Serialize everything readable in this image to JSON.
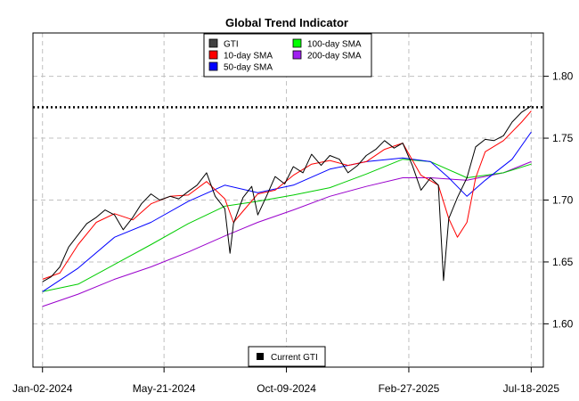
{
  "chart_data": {
    "type": "line",
    "title": "Global Trend Indicator",
    "xlabel": "",
    "ylabel": "",
    "grid": true,
    "legend_position": "top-center",
    "xlim": [
      "2023-12-22",
      "2025-08-01"
    ],
    "ylim": [
      1.565,
      1.835
    ],
    "x_ticks": [
      "2024-01-02",
      "2024-05-21",
      "2024-10-09",
      "2025-02-27",
      "2025-07-18"
    ],
    "x_tick_labels": [
      "Jan-02-2024",
      "May-21-2024",
      "Oct-09-2024",
      "Feb-27-2025",
      "Jul-18-2025"
    ],
    "y_ticks": [
      1.6,
      1.65,
      1.7,
      1.75,
      1.8
    ],
    "y_tick_labels": [
      "1.60",
      "1.65",
      "1.70",
      "1.75",
      "1.80"
    ],
    "current_level": {
      "value": 1.775,
      "label": "Current GTI",
      "color": "#000000"
    },
    "series": [
      {
        "name": "GTI",
        "color": "#000000",
        "legend_color": "#404040",
        "points": [
          [
            "2024-01-02",
            1.634
          ],
          [
            "2024-01-12",
            1.638
          ],
          [
            "2024-01-22",
            1.646
          ],
          [
            "2024-02-01",
            1.662
          ],
          [
            "2024-02-12",
            1.672
          ],
          [
            "2024-02-22",
            1.681
          ],
          [
            "2024-03-04",
            1.686
          ],
          [
            "2024-03-14",
            1.692
          ],
          [
            "2024-03-25",
            1.688
          ],
          [
            "2024-04-04",
            1.676
          ],
          [
            "2024-04-15",
            1.686
          ],
          [
            "2024-04-25",
            1.697
          ],
          [
            "2024-05-06",
            1.705
          ],
          [
            "2024-05-16",
            1.7
          ],
          [
            "2024-05-28",
            1.703
          ],
          [
            "2024-06-07",
            1.701
          ],
          [
            "2024-06-18",
            1.707
          ],
          [
            "2024-06-28",
            1.712
          ],
          [
            "2024-07-09",
            1.722
          ],
          [
            "2024-07-19",
            1.703
          ],
          [
            "2024-07-30",
            1.693
          ],
          [
            "2024-08-05",
            1.657
          ],
          [
            "2024-08-09",
            1.681
          ],
          [
            "2024-08-20",
            1.702
          ],
          [
            "2024-08-30",
            1.711
          ],
          [
            "2024-09-06",
            1.688
          ],
          [
            "2024-09-16",
            1.703
          ],
          [
            "2024-09-26",
            1.719
          ],
          [
            "2024-10-07",
            1.713
          ],
          [
            "2024-10-17",
            1.727
          ],
          [
            "2024-10-28",
            1.722
          ],
          [
            "2024-11-07",
            1.737
          ],
          [
            "2024-11-18",
            1.728
          ],
          [
            "2024-11-28",
            1.736
          ],
          [
            "2024-12-09",
            1.733
          ],
          [
            "2024-12-19",
            1.722
          ],
          [
            "2024-12-30",
            1.728
          ],
          [
            "2025-01-09",
            1.736
          ],
          [
            "2025-01-20",
            1.741
          ],
          [
            "2025-01-30",
            1.748
          ],
          [
            "2025-02-10",
            1.742
          ],
          [
            "2025-02-20",
            1.746
          ],
          [
            "2025-03-03",
            1.728
          ],
          [
            "2025-03-13",
            1.708
          ],
          [
            "2025-03-24",
            1.718
          ],
          [
            "2025-04-02",
            1.712
          ],
          [
            "2025-04-08",
            1.635
          ],
          [
            "2025-04-14",
            1.685
          ],
          [
            "2025-04-24",
            1.702
          ],
          [
            "2025-05-05",
            1.718
          ],
          [
            "2025-05-15",
            1.743
          ],
          [
            "2025-05-26",
            1.749
          ],
          [
            "2025-06-05",
            1.748
          ],
          [
            "2025-06-16",
            1.752
          ],
          [
            "2025-06-26",
            1.763
          ],
          [
            "2025-07-07",
            1.771
          ],
          [
            "2025-07-18",
            1.776
          ]
        ]
      },
      {
        "name": "10-day SMA",
        "color": "#ff0000",
        "points": [
          [
            "2024-01-02",
            1.636
          ],
          [
            "2024-01-22",
            1.641
          ],
          [
            "2024-02-12",
            1.664
          ],
          [
            "2024-03-04",
            1.682
          ],
          [
            "2024-03-25",
            1.689
          ],
          [
            "2024-04-15",
            1.684
          ],
          [
            "2024-05-06",
            1.697
          ],
          [
            "2024-05-28",
            1.703
          ],
          [
            "2024-06-18",
            1.704
          ],
          [
            "2024-07-09",
            1.715
          ],
          [
            "2024-07-30",
            1.701
          ],
          [
            "2024-08-09",
            1.682
          ],
          [
            "2024-08-20",
            1.691
          ],
          [
            "2024-09-06",
            1.705
          ],
          [
            "2024-09-26",
            1.708
          ],
          [
            "2024-10-17",
            1.72
          ],
          [
            "2024-11-07",
            1.729
          ],
          [
            "2024-11-28",
            1.732
          ],
          [
            "2024-12-19",
            1.728
          ],
          [
            "2025-01-09",
            1.731
          ],
          [
            "2025-01-30",
            1.741
          ],
          [
            "2025-02-20",
            1.746
          ],
          [
            "2025-03-13",
            1.72
          ],
          [
            "2025-04-02",
            1.712
          ],
          [
            "2025-04-14",
            1.685
          ],
          [
            "2025-04-24",
            1.67
          ],
          [
            "2025-05-05",
            1.682
          ],
          [
            "2025-05-15",
            1.718
          ],
          [
            "2025-05-26",
            1.739
          ],
          [
            "2025-06-16",
            1.748
          ],
          [
            "2025-07-07",
            1.763
          ],
          [
            "2025-07-18",
            1.772
          ]
        ]
      },
      {
        "name": "50-day SMA",
        "color": "#0000ff",
        "points": [
          [
            "2024-01-02",
            1.626
          ],
          [
            "2024-02-12",
            1.645
          ],
          [
            "2024-03-25",
            1.67
          ],
          [
            "2024-05-06",
            1.682
          ],
          [
            "2024-06-18",
            1.699
          ],
          [
            "2024-07-30",
            1.712
          ],
          [
            "2024-09-06",
            1.706
          ],
          [
            "2024-10-17",
            1.712
          ],
          [
            "2024-11-28",
            1.725
          ],
          [
            "2025-01-09",
            1.731
          ],
          [
            "2025-02-20",
            1.734
          ],
          [
            "2025-03-24",
            1.731
          ],
          [
            "2025-04-14",
            1.718
          ],
          [
            "2025-05-05",
            1.703
          ],
          [
            "2025-05-26",
            1.716
          ],
          [
            "2025-06-26",
            1.733
          ],
          [
            "2025-07-18",
            1.755
          ]
        ]
      },
      {
        "name": "100-day SMA",
        "color": "#00cc00",
        "legend_color": "#00ff00",
        "points": [
          [
            "2024-01-02",
            1.626
          ],
          [
            "2024-02-12",
            1.632
          ],
          [
            "2024-03-25",
            1.648
          ],
          [
            "2024-05-06",
            1.664
          ],
          [
            "2024-06-18",
            1.681
          ],
          [
            "2024-07-30",
            1.695
          ],
          [
            "2024-09-06",
            1.699
          ],
          [
            "2024-10-17",
            1.704
          ],
          [
            "2024-11-28",
            1.71
          ],
          [
            "2025-01-09",
            1.721
          ],
          [
            "2025-02-20",
            1.733
          ],
          [
            "2025-03-24",
            1.731
          ],
          [
            "2025-05-05",
            1.718
          ],
          [
            "2025-06-16",
            1.722
          ],
          [
            "2025-07-18",
            1.729
          ]
        ]
      },
      {
        "name": "200-day SMA",
        "color": "#9900cc",
        "legend_color": "#a020f0",
        "points": [
          [
            "2024-01-02",
            1.614
          ],
          [
            "2024-02-12",
            1.624
          ],
          [
            "2024-03-25",
            1.636
          ],
          [
            "2024-05-06",
            1.646
          ],
          [
            "2024-06-18",
            1.658
          ],
          [
            "2024-07-30",
            1.671
          ],
          [
            "2024-09-06",
            1.682
          ],
          [
            "2024-10-17",
            1.692
          ],
          [
            "2024-11-28",
            1.703
          ],
          [
            "2025-01-09",
            1.711
          ],
          [
            "2025-02-20",
            1.718
          ],
          [
            "2025-03-24",
            1.718
          ],
          [
            "2025-05-05",
            1.716
          ],
          [
            "2025-06-16",
            1.722
          ],
          [
            "2025-07-18",
            1.731
          ]
        ]
      }
    ]
  }
}
